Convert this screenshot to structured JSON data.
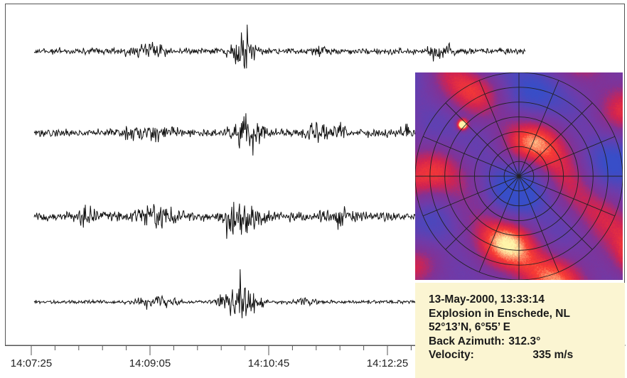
{
  "chart_data": {
    "type": "line",
    "time_axis": {
      "tick_labels": [
        "14:07:25",
        "14:09:05",
        "14:10:45",
        "14:12:25"
      ]
    },
    "seismogram_traces": 4,
    "events": [
      {
        "time": "14:10:35",
        "description": "main arrival, strongest on all traces"
      }
    ],
    "polar_map": {
      "type": "heatmap",
      "grid": "polar",
      "rings": 7,
      "spokes": 16,
      "peak_back_azimuth_deg": 312.3,
      "colormap": [
        "#3b51c8",
        "#7a3fb0",
        "#d02050",
        "#ff4030",
        "#fff0a0"
      ]
    }
  },
  "info": {
    "line1": "13-May-2000, 13:33:14",
    "line2": "Explosion in Enschede, NL",
    "line3": "52°13’N, 6°55’ E",
    "azimuth_label": "Back Azimuth:",
    "azimuth_value": "312.3°",
    "velocity_label": "Velocity:",
    "velocity_value": "335 m/s"
  },
  "colors": {
    "trace": "#111111",
    "info_background": "#fbf5d2",
    "grid_lines": "#222222"
  }
}
